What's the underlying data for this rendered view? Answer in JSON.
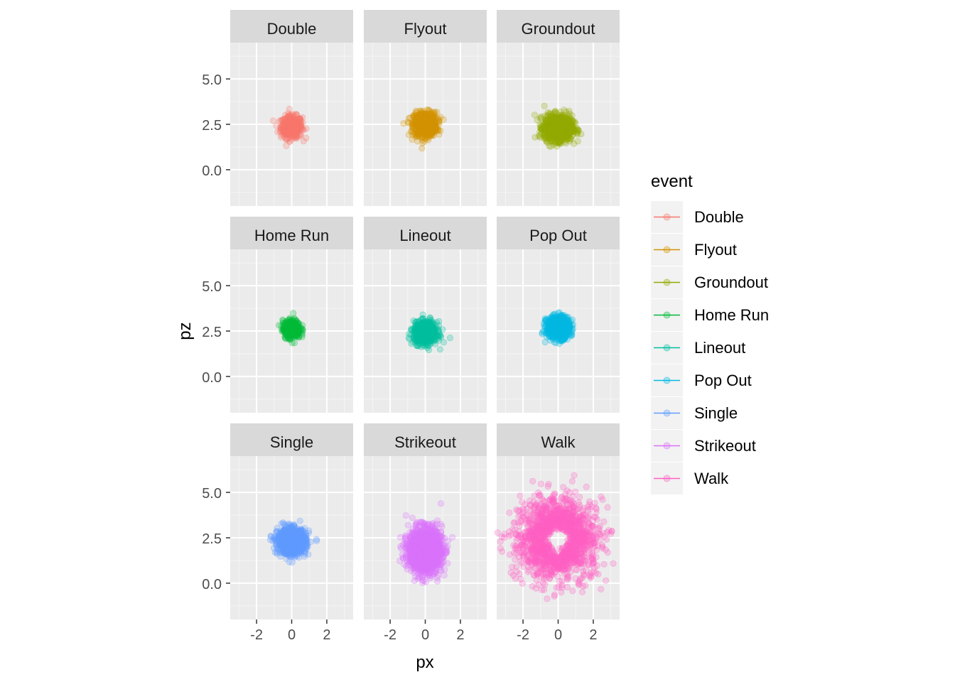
{
  "chart_data": {
    "type": "scatter",
    "facet_layout": "3x3",
    "xlabel": "px",
    "ylabel": "pz",
    "xlim": [
      -3.5,
      3.5
    ],
    "ylim": [
      -2.0,
      7.0
    ],
    "x_ticks": [
      -2,
      0,
      2
    ],
    "x_tick_labels": [
      "-2",
      "0",
      "2"
    ],
    "y_ticks": [
      0.0,
      2.5,
      5.0
    ],
    "y_tick_labels": [
      "0.0",
      "2.5",
      "5.0"
    ],
    "grid": true,
    "legend": {
      "title": "event",
      "placement": "right"
    },
    "panels": [
      {
        "name": "Double",
        "color": "#F8766D",
        "center": [
          0.0,
          2.35
        ],
        "spread": [
          0.55,
          0.55
        ],
        "n": 420
      },
      {
        "name": "Flyout",
        "color": "#D39200",
        "center": [
          0.0,
          2.5
        ],
        "spread": [
          0.6,
          0.6
        ],
        "n": 700
      },
      {
        "name": "Groundout",
        "color": "#93AA00",
        "center": [
          0.0,
          2.3
        ],
        "spread": [
          0.72,
          0.62
        ],
        "n": 1100
      },
      {
        "name": "Home Run",
        "color": "#00BA38",
        "center": [
          0.0,
          2.6
        ],
        "spread": [
          0.45,
          0.45
        ],
        "n": 380
      },
      {
        "name": "Lineout",
        "color": "#00C19F",
        "center": [
          0.0,
          2.4
        ],
        "spread": [
          0.6,
          0.55
        ],
        "n": 700
      },
      {
        "name": "Pop Out",
        "color": "#00B9E3",
        "center": [
          0.0,
          2.7
        ],
        "spread": [
          0.6,
          0.55
        ],
        "n": 700
      },
      {
        "name": "Single",
        "color": "#619CFF",
        "center": [
          0.0,
          2.3
        ],
        "spread": [
          0.72,
          0.62
        ],
        "n": 1100
      },
      {
        "name": "Strikeout",
        "color": "#DB72FB",
        "center": [
          0.0,
          1.8
        ],
        "spread": [
          0.85,
          1.1
        ],
        "n": 1500
      },
      {
        "name": "Walk",
        "color": "#FF61C3",
        "center": [
          0.0,
          2.4
        ],
        "spread": [
          1.1,
          1.1
        ],
        "n": 1500,
        "ring": true
      }
    ]
  }
}
